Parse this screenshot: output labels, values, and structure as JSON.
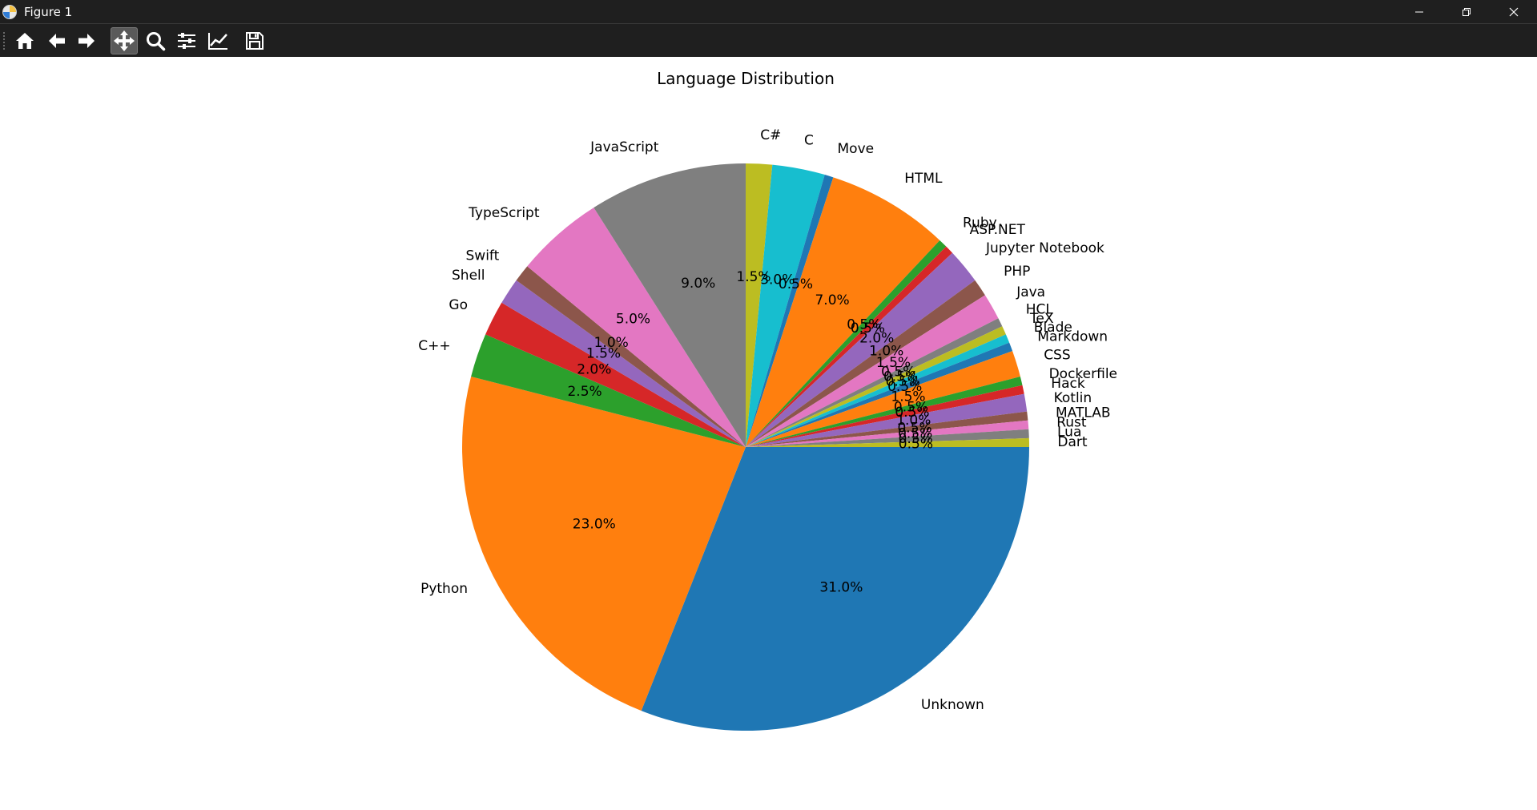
{
  "window": {
    "title": "Figure 1"
  },
  "toolbar": {
    "buttons": [
      {
        "name": "home-button",
        "icon": "home-icon"
      },
      {
        "name": "back-button",
        "icon": "arrow-left-icon"
      },
      {
        "name": "forward-button",
        "icon": "arrow-right-icon"
      },
      {
        "name": "pan-button",
        "icon": "move-icon",
        "active": true
      },
      {
        "name": "zoom-button",
        "icon": "magnifier-icon"
      },
      {
        "name": "configure-subplots-button",
        "icon": "sliders-icon"
      },
      {
        "name": "edit-axis-button",
        "icon": "line-chart-icon"
      },
      {
        "name": "save-button",
        "icon": "floppy-disk-icon"
      }
    ]
  },
  "chart_data": {
    "type": "pie",
    "title": "Language Distribution",
    "start_angle": 0,
    "direction": "clockwise",
    "slices": [
      {
        "label": "Unknown",
        "value": 31.0,
        "pct_label": "31.0%",
        "color": "#1f77b4"
      },
      {
        "label": "Python",
        "value": 23.0,
        "pct_label": "23.0%",
        "color": "#ff7f0e"
      },
      {
        "label": "C++",
        "value": 2.5,
        "pct_label": "2.5%",
        "color": "#2ca02c"
      },
      {
        "label": "Go",
        "value": 2.0,
        "pct_label": "2.0%",
        "color": "#d62728"
      },
      {
        "label": "Shell",
        "value": 1.5,
        "pct_label": "1.5%",
        "color": "#9467bd"
      },
      {
        "label": "Swift",
        "value": 1.0,
        "pct_label": "1.0%",
        "color": "#8c564b"
      },
      {
        "label": "TypeScript",
        "value": 5.0,
        "pct_label": "5.0%",
        "color": "#e377c2"
      },
      {
        "label": "JavaScript",
        "value": 9.0,
        "pct_label": "9.0%",
        "color": "#7f7f7f"
      },
      {
        "label": "C#",
        "value": 1.5,
        "pct_label": "1.5%",
        "color": "#bcbd22"
      },
      {
        "label": "C",
        "value": 3.0,
        "pct_label": "3.0%",
        "color": "#17becf"
      },
      {
        "label": "Move",
        "value": 0.5,
        "pct_label": "0.5%",
        "color": "#1f77b4"
      },
      {
        "label": "HTML",
        "value": 7.0,
        "pct_label": "7.0%",
        "color": "#ff7f0e"
      },
      {
        "label": "Ruby",
        "value": 0.5,
        "pct_label": "0.5%",
        "color": "#2ca02c"
      },
      {
        "label": "ASP.NET",
        "value": 0.5,
        "pct_label": "0.5%",
        "color": "#d62728"
      },
      {
        "label": "Jupyter Notebook",
        "value": 2.0,
        "pct_label": "2.0%",
        "color": "#9467bd"
      },
      {
        "label": "PHP",
        "value": 1.0,
        "pct_label": "1.0%",
        "color": "#8c564b"
      },
      {
        "label": "Java",
        "value": 1.5,
        "pct_label": "1.5%",
        "color": "#e377c2"
      },
      {
        "label": "HCL",
        "value": 0.5,
        "pct_label": "0.5%",
        "color": "#7f7f7f"
      },
      {
        "label": "TeX",
        "value": 0.5,
        "pct_label": "0.5%",
        "color": "#bcbd22"
      },
      {
        "label": "Blade",
        "value": 0.5,
        "pct_label": "0.5%",
        "color": "#17becf"
      },
      {
        "label": "Markdown",
        "value": 0.5,
        "pct_label": "0.5%",
        "color": "#1f77b4"
      },
      {
        "label": "CSS",
        "value": 1.5,
        "pct_label": "1.5%",
        "color": "#ff7f0e"
      },
      {
        "label": "Dockerfile",
        "value": 0.5,
        "pct_label": "0.5%",
        "color": "#2ca02c"
      },
      {
        "label": "Hack",
        "value": 0.5,
        "pct_label": "0.5%",
        "color": "#d62728"
      },
      {
        "label": "Kotlin",
        "value": 1.0,
        "pct_label": "1.0%",
        "color": "#9467bd"
      },
      {
        "label": "MATLAB",
        "value": 0.5,
        "pct_label": "0.5%",
        "color": "#8c564b"
      },
      {
        "label": "Rust",
        "value": 0.5,
        "pct_label": "0.5%",
        "color": "#e377c2"
      },
      {
        "label": "Lua",
        "value": 0.5,
        "pct_label": "0.5%",
        "color": "#7f7f7f"
      },
      {
        "label": "Dart",
        "value": 0.5,
        "pct_label": "0.5%",
        "color": "#bcbd22"
      }
    ]
  }
}
